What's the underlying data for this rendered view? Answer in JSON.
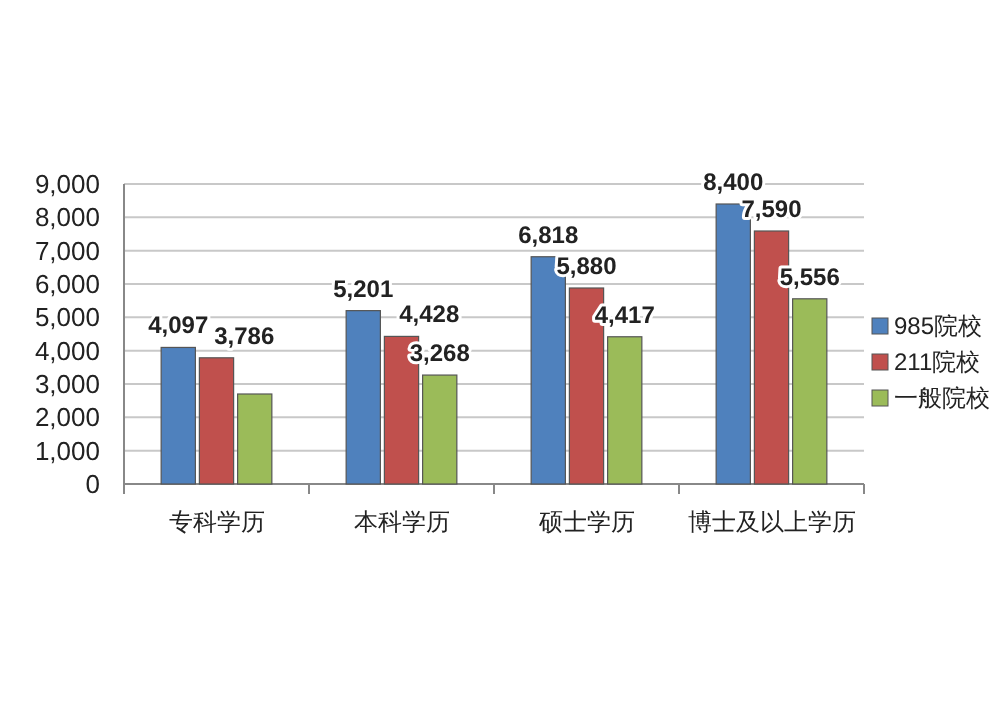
{
  "chart_data": {
    "type": "bar",
    "categories": [
      "专科学历",
      "本科学历",
      "硕士学历",
      "博士及以上学历"
    ],
    "series": [
      {
        "name": "985院校",
        "color": "#4f81bd",
        "values": [
          4097,
          5201,
          6818,
          8400
        ],
        "value_labels": [
          "4,097",
          "5,201",
          "6,818",
          "8,400"
        ]
      },
      {
        "name": "211院校",
        "color": "#c0504d",
        "values": [
          3786,
          4428,
          5880,
          7590
        ],
        "value_labels": [
          "3,786",
          "4,428",
          "5,880",
          "7,590"
        ]
      },
      {
        "name": "一般院校",
        "color": "#9bbb59",
        "values": [
          2700,
          3268,
          4417,
          5556
        ],
        "value_labels": [
          null,
          "3,268",
          "4,417",
          "5,556"
        ]
      }
    ],
    "ylim": [
      0,
      9000
    ],
    "yticks": [
      {
        "value": 0,
        "label": "0"
      },
      {
        "value": 1000,
        "label": "1,000"
      },
      {
        "value": 2000,
        "label": "2,000"
      },
      {
        "value": 3000,
        "label": "3,000"
      },
      {
        "value": 4000,
        "label": "4,000"
      },
      {
        "value": 5000,
        "label": "5,000"
      },
      {
        "value": 6000,
        "label": "6,000"
      },
      {
        "value": 7000,
        "label": "7,000"
      },
      {
        "value": 8000,
        "label": "8,000"
      },
      {
        "value": 9000,
        "label": "9,000"
      }
    ],
    "grid": "y",
    "legend": "right"
  }
}
